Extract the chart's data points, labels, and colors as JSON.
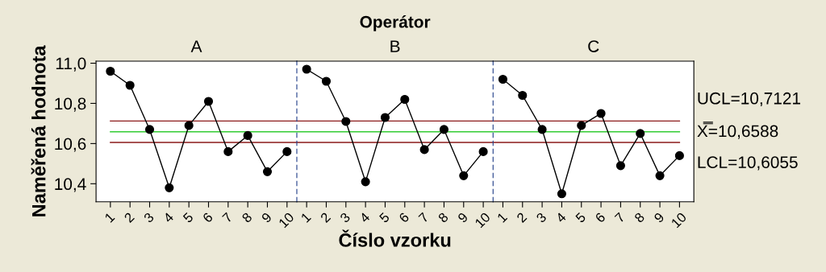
{
  "chart_data": [
    {
      "type": "line",
      "subtitle": "A",
      "ylabel": "Naměřená hodnota",
      "categories": [
        "1",
        "2",
        "3",
        "4",
        "5",
        "6",
        "7",
        "8",
        "9",
        "10"
      ],
      "series": [
        {
          "color": "#000000",
          "values": [
            10.96,
            10.89,
            10.67,
            10.38,
            10.69,
            10.81,
            10.56,
            10.64,
            10.46,
            10.56
          ]
        }
      ],
      "marker": "circle",
      "ylim": [
        10.31,
        11.01
      ],
      "yticks": [
        {
          "value": 10.4,
          "label": "10,4"
        },
        {
          "value": 10.6,
          "label": "10,6"
        },
        {
          "value": 10.8,
          "label": "10,8"
        },
        {
          "value": 11.0,
          "label": "11,0"
        }
      ],
      "ref_lines": [
        {
          "axis": "y",
          "value": 10.7121,
          "color": "#8b1a1a"
        },
        {
          "axis": "y",
          "value": 10.6588,
          "color": "#33cc33"
        },
        {
          "axis": "y",
          "value": 10.6055,
          "color": "#8b1a1a"
        }
      ]
    },
    {
      "type": "line",
      "title": "Operátor",
      "subtitle": "B",
      "xlabel": "Číslo vzorku",
      "categories": [
        "1",
        "2",
        "3",
        "4",
        "5",
        "6",
        "7",
        "8",
        "9",
        "10"
      ],
      "series": [
        {
          "color": "#000000",
          "values": [
            10.97,
            10.91,
            10.71,
            10.41,
            10.73,
            10.82,
            10.57,
            10.67,
            10.44,
            10.56
          ]
        }
      ],
      "marker": "circle",
      "ylim": [
        10.31,
        11.01
      ],
      "tick_labels": "x",
      "ref_lines": [
        {
          "axis": "y",
          "value": 10.7121,
          "color": "#8b1a1a"
        },
        {
          "axis": "y",
          "value": 10.6588,
          "color": "#33cc33"
        },
        {
          "axis": "y",
          "value": 10.6055,
          "color": "#8b1a1a"
        }
      ]
    },
    {
      "type": "line",
      "subtitle": "C",
      "categories": [
        "1",
        "2",
        "3",
        "4",
        "5",
        "6",
        "7",
        "8",
        "9",
        "10"
      ],
      "series": [
        {
          "color": "#000000",
          "values": [
            10.92,
            10.84,
            10.67,
            10.35,
            10.69,
            10.75,
            10.49,
            10.65,
            10.44,
            10.54
          ]
        }
      ],
      "marker": "circle",
      "ylim": [
        10.31,
        11.01
      ],
      "tick_labels": "x",
      "ref_lines": [
        {
          "axis": "y",
          "value": 10.7121,
          "label": "UCL=10,7121",
          "color": "#8b1a1a"
        },
        {
          "axis": "y",
          "value": 10.6588,
          "label": "X̿=10,6588",
          "color": "#33cc33"
        },
        {
          "axis": "y",
          "value": 10.6055,
          "label": "LCL=10,6055",
          "color": "#8b1a1a"
        }
      ]
    }
  ]
}
